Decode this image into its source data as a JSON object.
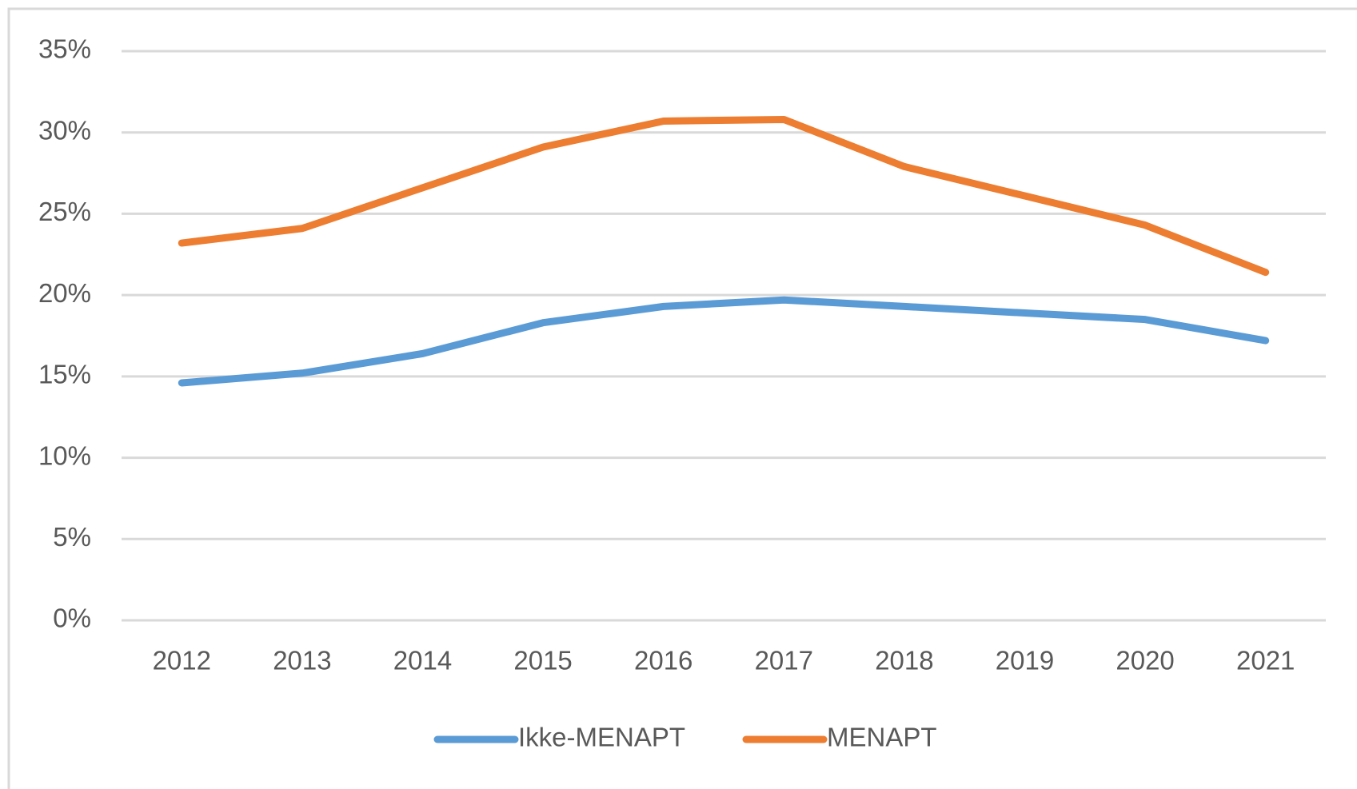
{
  "chart_data": {
    "type": "line",
    "categories": [
      "2012",
      "2013",
      "2014",
      "2015",
      "2016",
      "2017",
      "2018",
      "2019",
      "2020",
      "2021"
    ],
    "series": [
      {
        "name": "Ikke-MENAPT",
        "color": "#5b9bd5",
        "values": [
          14.6,
          15.2,
          16.4,
          18.3,
          19.3,
          19.7,
          19.3,
          18.9,
          18.5,
          17.2
        ]
      },
      {
        "name": "MENAPT",
        "color": "#ed7d31",
        "values": [
          23.2,
          24.1,
          26.6,
          29.1,
          30.7,
          30.8,
          27.9,
          26.1,
          24.3,
          21.4
        ]
      }
    ],
    "ylim": [
      0,
      35
    ],
    "yticks": [
      {
        "value": 0,
        "label": "0%"
      },
      {
        "value": 5,
        "label": "5%"
      },
      {
        "value": 10,
        "label": "10%"
      },
      {
        "value": 15,
        "label": "15%"
      },
      {
        "value": 20,
        "label": "20%"
      },
      {
        "value": 25,
        "label": "25%"
      },
      {
        "value": 30,
        "label": "30%"
      },
      {
        "value": 35,
        "label": "35%"
      }
    ],
    "grid": true,
    "legend": "bottom"
  }
}
